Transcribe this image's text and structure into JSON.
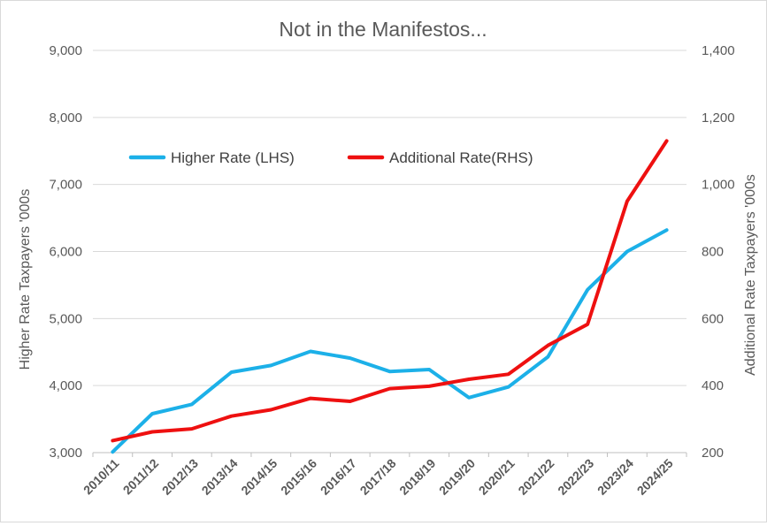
{
  "chart_data": {
    "type": "line",
    "title": "Not in the Manifestos...",
    "ylabel_left": "Higher Rate Taxpayers '000s",
    "ylabel_right": "Additional Rate Taxpayers '000s",
    "ylim_left": [
      3000,
      9000
    ],
    "ylim_right": [
      200,
      1400
    ],
    "yticks_left": [
      "3,000",
      "4,000",
      "5,000",
      "6,000",
      "7,000",
      "8,000",
      "9,000"
    ],
    "yticks_right": [
      "200",
      "400",
      "600",
      "800",
      "1,000",
      "1,200",
      "1,400"
    ],
    "categories": [
      "2010/11",
      "2011/12",
      "2012/13",
      "2013/14",
      "2014/15",
      "2015/16",
      "2016/17",
      "2017/18",
      "2018/19",
      "2019/20",
      "2020/21",
      "2021/22",
      "2022/23",
      "2023/24",
      "2024/25"
    ],
    "grid": true,
    "legend_position": "upper-left",
    "series": [
      {
        "name": "Higher Rate (LHS)",
        "axis": "left",
        "color": "#1cb0e8",
        "values": [
          3010,
          3580,
          3720,
          4200,
          4300,
          4510,
          4410,
          4210,
          4240,
          3820,
          3980,
          4430,
          5430,
          6000,
          6320
        ]
      },
      {
        "name": "Additional Rate(RHS)",
        "axis": "right",
        "color": "#ee1010",
        "values": [
          236,
          262,
          271,
          309,
          328,
          362,
          353,
          391,
          398,
          419,
          434,
          520,
          583,
          950,
          1130
        ]
      }
    ]
  }
}
